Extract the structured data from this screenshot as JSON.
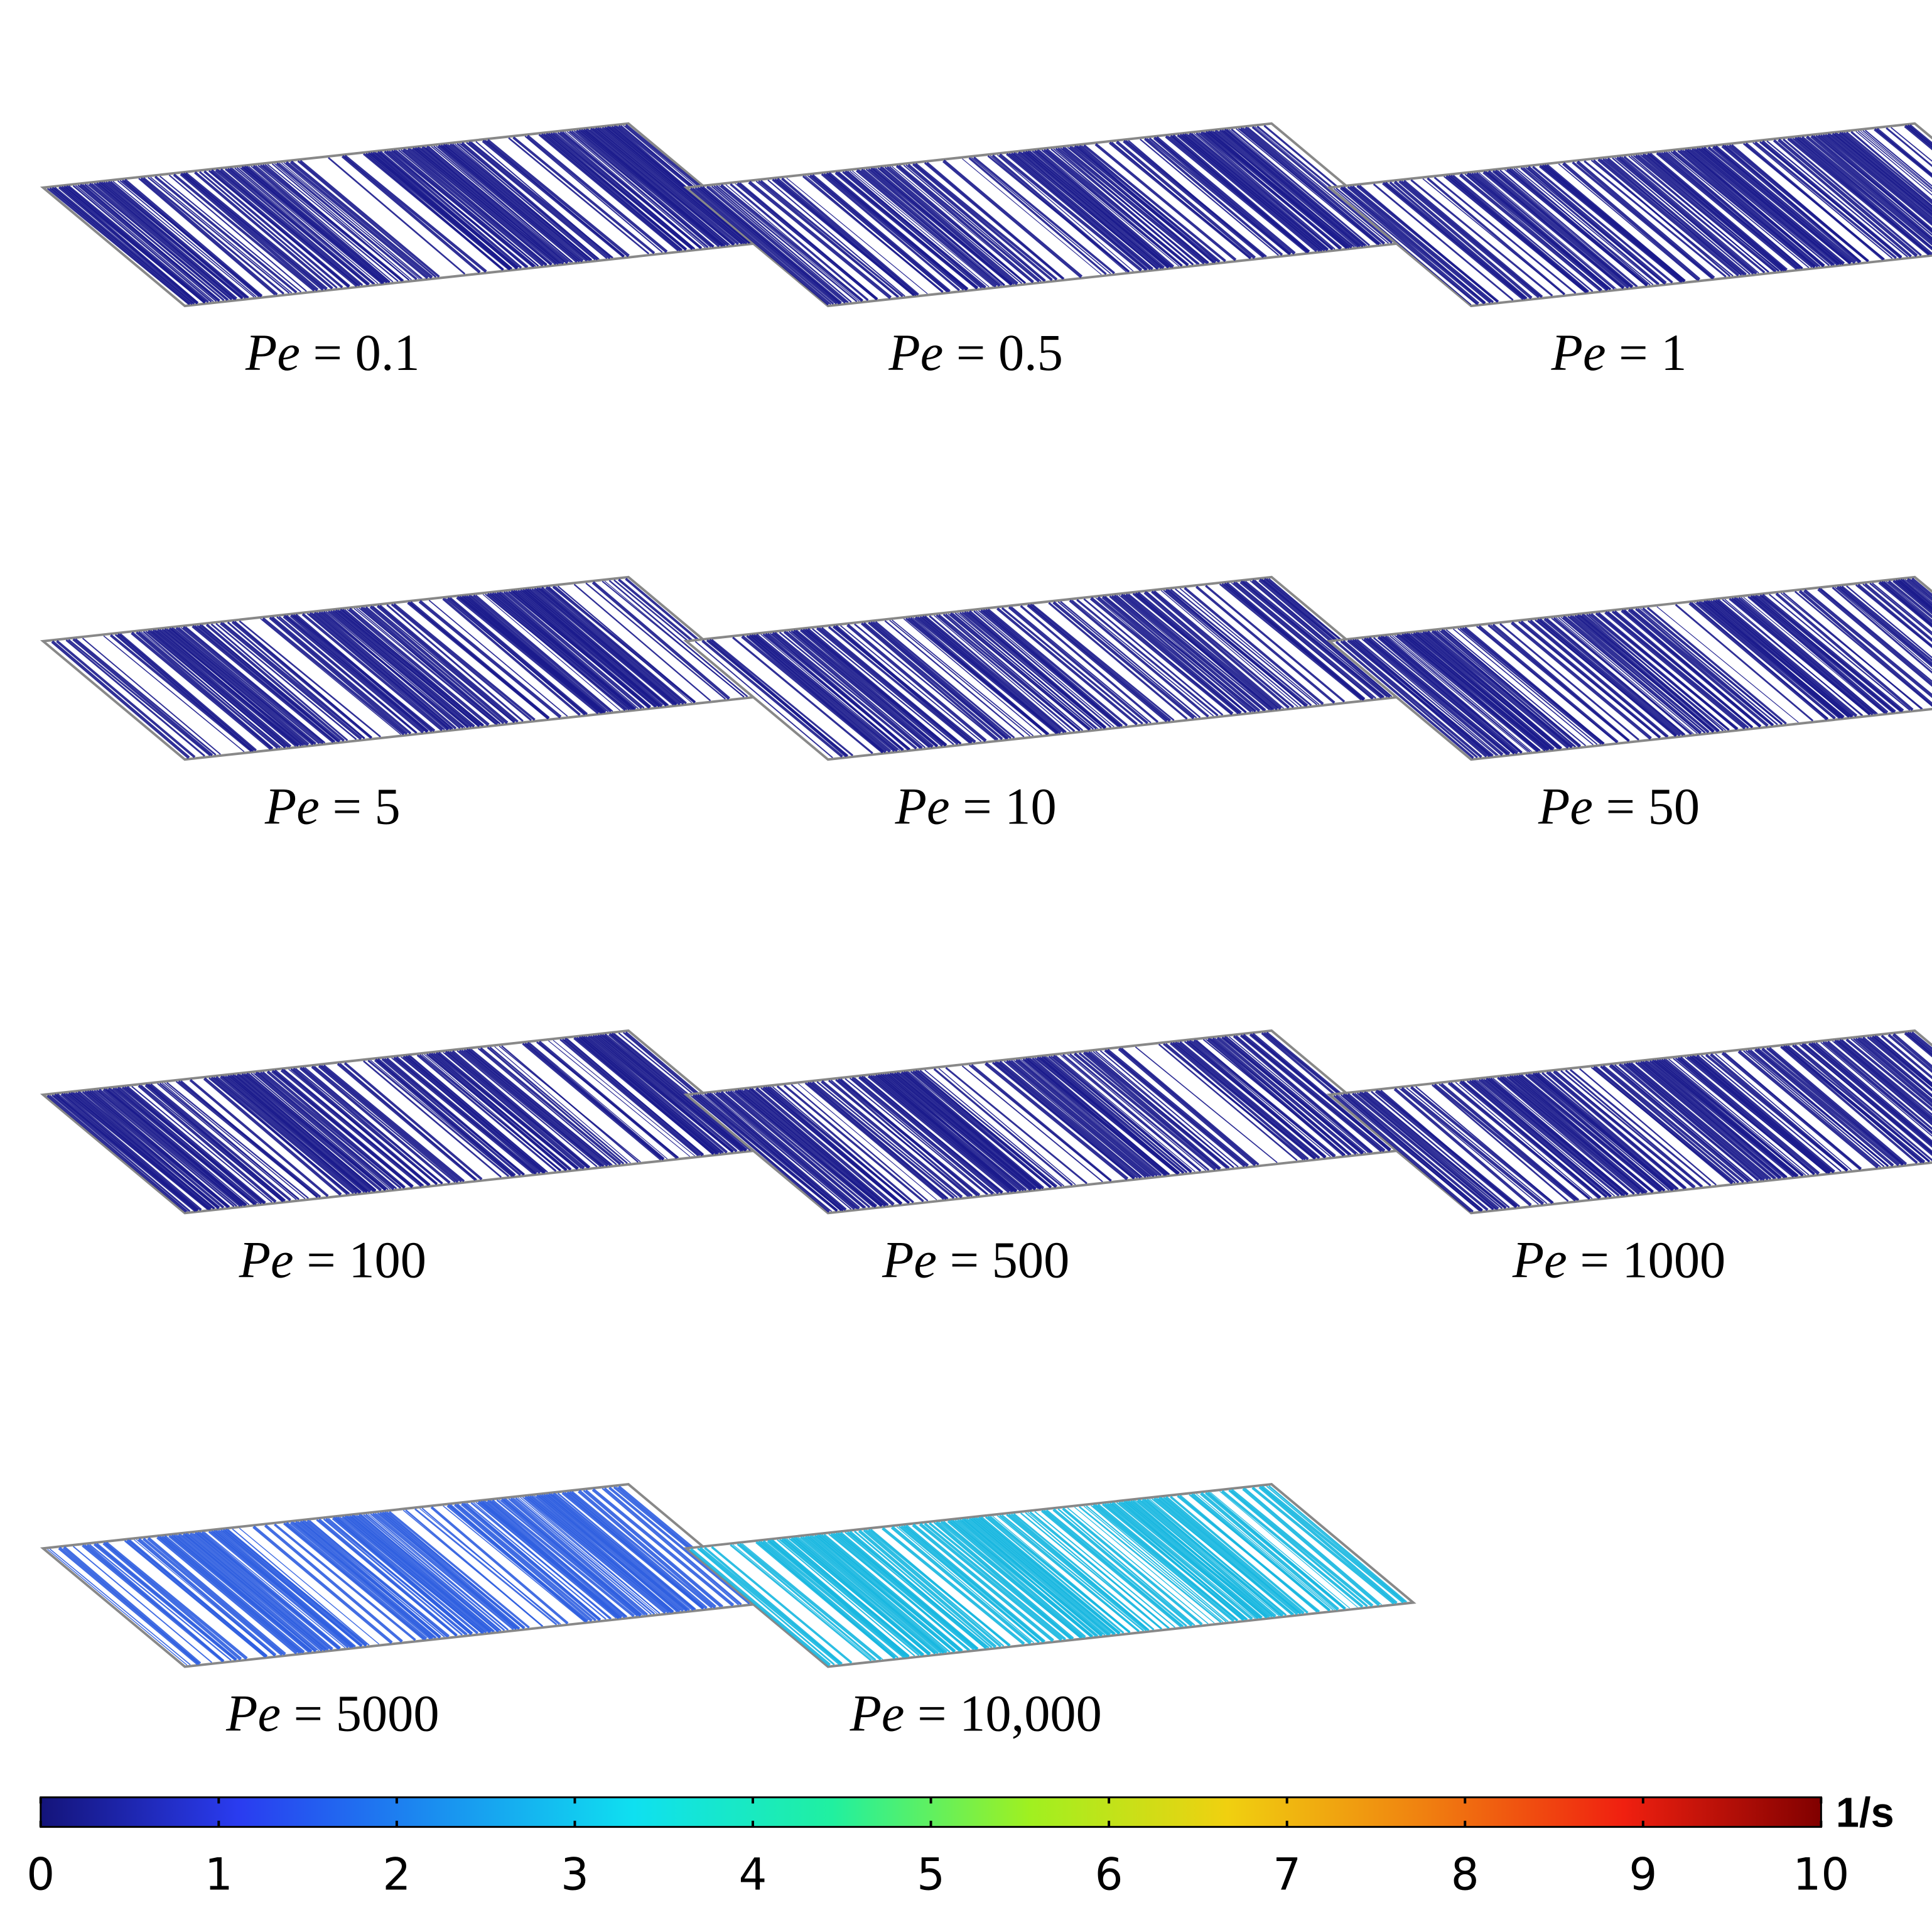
{
  "panels": [
    {
      "symbol": "Pe",
      "text": "= 0.1",
      "color": "#1a1a8c"
    },
    {
      "symbol": "Pe",
      "text": "= 0.5",
      "color": "#1a1a8c"
    },
    {
      "symbol": "Pe",
      "text": "= 1",
      "color": "#1a1a8c"
    },
    {
      "symbol": "Pe",
      "text": "= 5",
      "color": "#1a1a8c"
    },
    {
      "symbol": "Pe",
      "text": "= 10",
      "color": "#1a1a8c"
    },
    {
      "symbol": "Pe",
      "text": "= 50",
      "color": "#1a1a8c"
    },
    {
      "symbol": "Pe",
      "text": "= 100",
      "color": "#1a1a8c"
    },
    {
      "symbol": "Pe",
      "text": "= 500",
      "color": "#1a1a8c"
    },
    {
      "symbol": "Pe",
      "text": "= 1000",
      "color": "#1a1a8c"
    },
    {
      "symbol": "Pe",
      "text": "= 5000",
      "color": "#2f5fe0"
    },
    {
      "symbol": "Pe",
      "text": "= 10,000",
      "color": "#17b7e0"
    }
  ],
  "colorbar": {
    "lim": [
      0,
      10
    ],
    "ticks": [
      0,
      1,
      2,
      3,
      4,
      5,
      6,
      7,
      8,
      9,
      10
    ],
    "unit": "1/s",
    "colors": [
      "#14147a",
      "#2a3cf0",
      "#1a8ff0",
      "#0fe0f0",
      "#20f0a0",
      "#a0f020",
      "#f0d010",
      "#f08010",
      "#f02010",
      "#800000"
    ]
  }
}
